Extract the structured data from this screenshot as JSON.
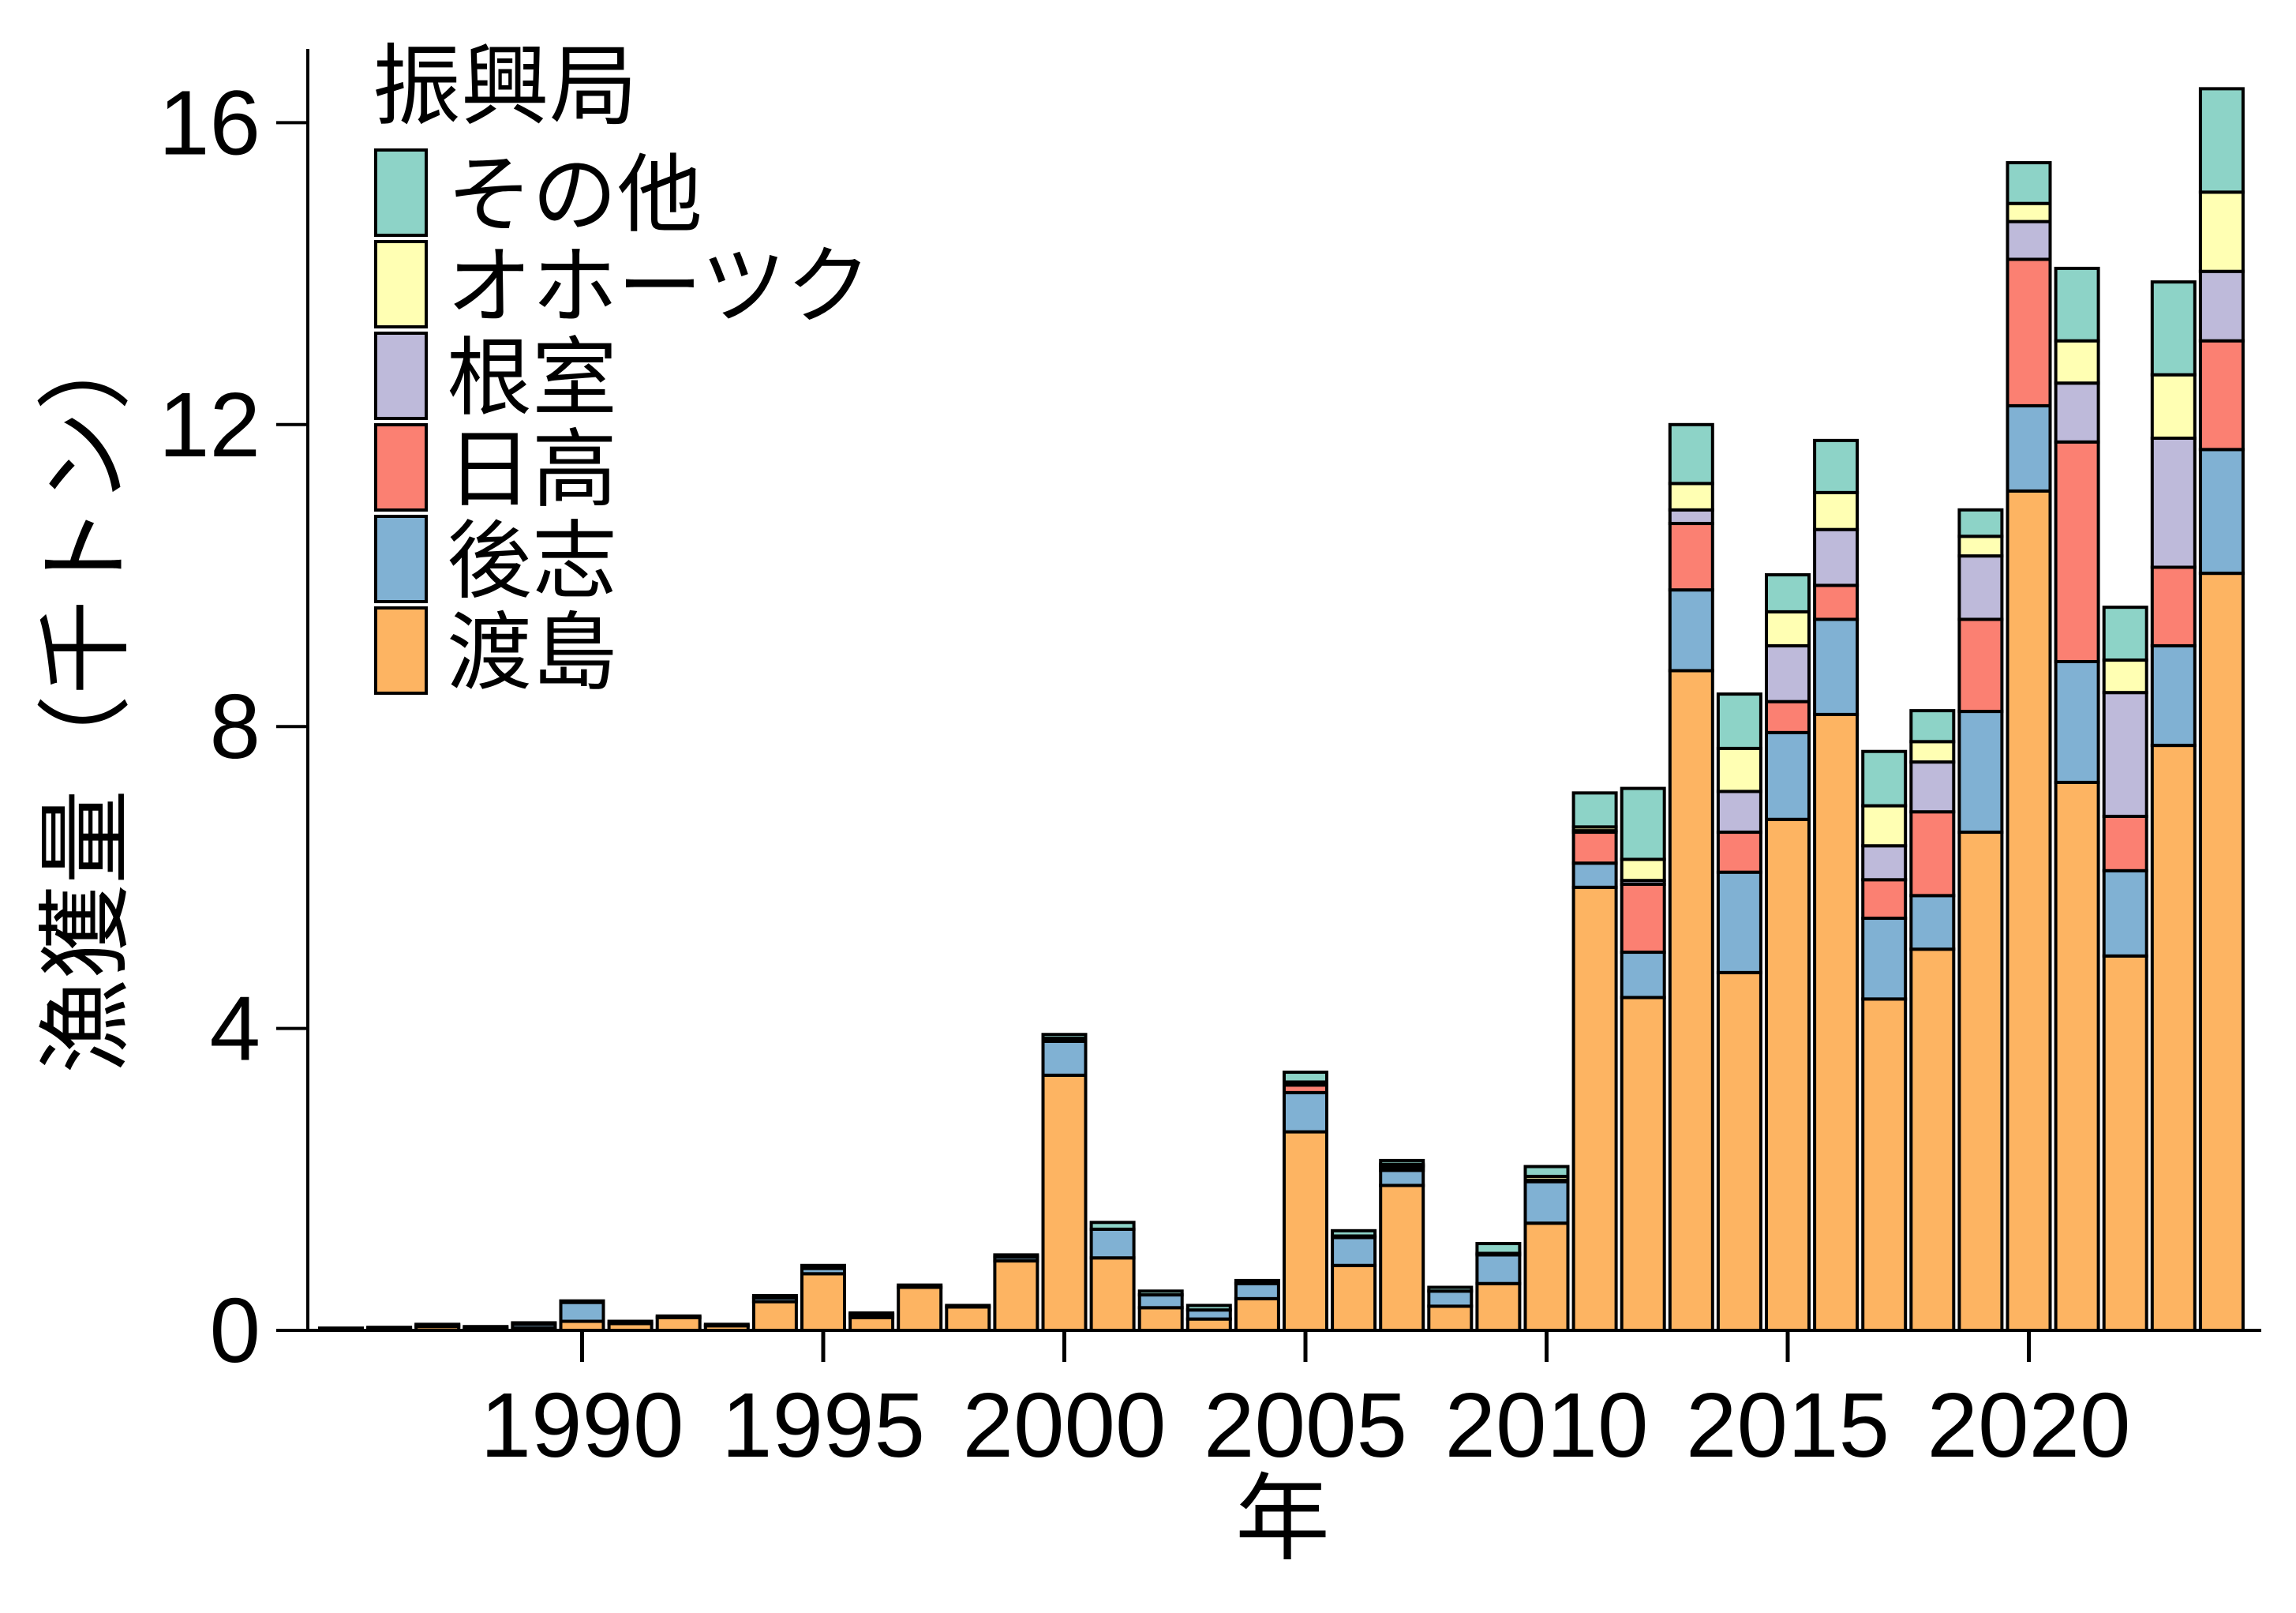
{
  "chart_data": {
    "type": "bar",
    "stacked": true,
    "title": "",
    "xlabel": "年",
    "ylabel": "漁獲量（千トン）",
    "ylim": [
      0,
      17
    ],
    "yticks": [
      0,
      4,
      8,
      12,
      16
    ],
    "xticks": [
      1990,
      1995,
      2000,
      2005,
      2010,
      2015,
      2020
    ],
    "grid": false,
    "legend_title": "振興局",
    "legend_position": "upper left",
    "categories": [
      1985,
      1986,
      1987,
      1988,
      1989,
      1990,
      1991,
      1992,
      1993,
      1994,
      1995,
      1996,
      1997,
      1998,
      1999,
      2000,
      2001,
      2002,
      2003,
      2004,
      2005,
      2006,
      2007,
      2008,
      2009,
      2010,
      2011,
      2012,
      2013,
      2014,
      2015,
      2016,
      2017,
      2018,
      2019,
      2020,
      2021,
      2022,
      2023,
      2024
    ],
    "series": [
      {
        "name": "渡島",
        "color": "#FDB462",
        "values": [
          0.02,
          0.03,
          0.05,
          0.03,
          0.03,
          0.12,
          0.09,
          0.17,
          0.06,
          0.38,
          0.75,
          0.17,
          0.57,
          0.31,
          0.92,
          3.38,
          0.96,
          0.3,
          0.15,
          0.42,
          2.63,
          0.86,
          1.92,
          0.32,
          0.62,
          1.42,
          5.87,
          4.41,
          8.74,
          4.74,
          6.77,
          8.16,
          4.39,
          5.05,
          6.6,
          11.12,
          7.26,
          4.96,
          7.75,
          10.03
        ]
      },
      {
        "name": "後志",
        "color": "#80B1D3",
        "values": [
          0.0,
          0.0,
          0.02,
          0.0,
          0.05,
          0.25,
          0.0,
          0.0,
          0.0,
          0.05,
          0.07,
          0.04,
          0.0,
          0.0,
          0.05,
          0.45,
          0.38,
          0.17,
          0.12,
          0.2,
          0.52,
          0.37,
          0.2,
          0.2,
          0.38,
          0.55,
          0.32,
          0.6,
          1.07,
          1.33,
          1.15,
          1.26,
          1.07,
          0.71,
          1.6,
          1.13,
          1.6,
          1.13,
          1.32,
          1.64
        ]
      },
      {
        "name": "日高",
        "color": "#FB8072",
        "values": [
          0,
          0,
          0,
          0,
          0,
          0,
          0,
          0,
          0,
          0,
          0,
          0,
          0,
          0,
          0,
          0.02,
          0,
          0,
          0,
          0,
          0.1,
          0,
          0.04,
          0,
          0,
          0,
          0.41,
          0.9,
          0.88,
          0.53,
          0.41,
          0.45,
          0.51,
          1.11,
          1.22,
          1.94,
          2.91,
          0.72,
          1.04,
          1.44
        ]
      },
      {
        "name": "根室",
        "color": "#BEBADA",
        "values": [
          0,
          0,
          0,
          0,
          0,
          0,
          0,
          0,
          0,
          0,
          0,
          0,
          0,
          0,
          0,
          0,
          0,
          0,
          0,
          0,
          0.02,
          0,
          0.02,
          0,
          0,
          0.02,
          0.02,
          0.05,
          0.18,
          0.54,
          0.74,
          0.74,
          0.45,
          0.66,
          0.84,
          0.5,
          0.78,
          1.64,
          1.71,
          0.92
        ]
      },
      {
        "name": "オホーツク",
        "color": "#FFFFB3",
        "values": [
          0,
          0,
          0,
          0,
          0,
          0,
          0,
          0,
          0,
          0,
          0,
          0,
          0,
          0,
          0,
          0.02,
          0,
          0,
          0,
          0,
          0.02,
          0.02,
          0.02,
          0,
          0.02,
          0.05,
          0.05,
          0.28,
          0.35,
          0.57,
          0.45,
          0.49,
          0.53,
          0.27,
          0.26,
          0.24,
          0.56,
          0.43,
          0.84,
          1.05
        ]
      },
      {
        "name": "その他",
        "color": "#8DD3C7",
        "values": [
          0.01,
          0.01,
          0.01,
          0.02,
          0.02,
          0.02,
          0.03,
          0.02,
          0.02,
          0.03,
          0.04,
          0.02,
          0.03,
          0.02,
          0.03,
          0.05,
          0.09,
          0.05,
          0.06,
          0.04,
          0.13,
          0.07,
          0.05,
          0.05,
          0.13,
          0.13,
          0.45,
          0.94,
          0.78,
          0.72,
          0.49,
          0.69,
          0.72,
          0.41,
          0.35,
          0.54,
          0.96,
          0.7,
          1.23,
          1.37
        ]
      }
    ]
  },
  "axes": {
    "x_title": "年",
    "y_title": "漁獲量（千トン）",
    "y_tick_labels": [
      "0",
      "4",
      "8",
      "12",
      "16"
    ],
    "x_tick_labels": [
      "1990",
      "1995",
      "2000",
      "2005",
      "2010",
      "2015",
      "2020"
    ]
  },
  "legend": {
    "title": "振興局",
    "items": [
      {
        "label": "その他",
        "color": "#8DD3C7"
      },
      {
        "label": "オホーツク",
        "color": "#FFFFB3"
      },
      {
        "label": "根室",
        "color": "#BEBADA"
      },
      {
        "label": "日高",
        "color": "#FB8072"
      },
      {
        "label": "後志",
        "color": "#80B1D3"
      },
      {
        "label": "渡島",
        "color": "#FDB462"
      }
    ]
  }
}
